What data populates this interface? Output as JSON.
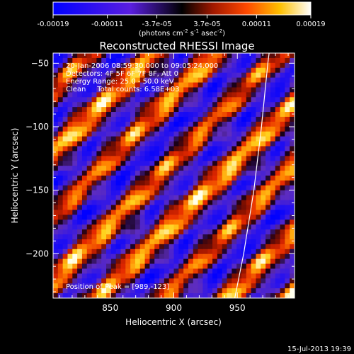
{
  "chart_data": {
    "type": "heatmap",
    "title": "Reconstructed RHESSI Image",
    "xlabel": "Heliocentric X (arcsec)",
    "ylabel": "Heliocentric Y (arcsec)",
    "xlim": [
      805,
      995
    ],
    "ylim": [
      -235,
      -42
    ],
    "x_ticks": [
      850,
      900,
      950
    ],
    "y_ticks": [
      -50,
      -100,
      -150,
      -200
    ],
    "colorbar": {
      "min": -0.00019,
      "max": 0.00019,
      "tick_values": [
        -0.00019,
        -0.00011,
        -3.7e-05,
        3.7e-05,
        0.00011,
        0.00019
      ],
      "tick_labels": [
        "-0.00019",
        "-0.00011",
        "-3.7e-05",
        "3.7e-05",
        "0.00011",
        "0.00019"
      ],
      "unit_label": "(photons cm",
      "unit_exp1": "-2",
      "unit_mid": " s",
      "unit_exp2": "-1",
      "unit_end": " asec",
      "unit_exp3": "-2",
      "unit_close": ")"
    },
    "annotations": {
      "line1": "20-Jan-2006 08:59:30.000 to 09:05:24.000",
      "line2": "Detectors: 4F 5F 6F 7F 8F, Att 0",
      "line3": "Energy Range: 25.0 - 50.0 keV",
      "line4": "Clean     Total counts: 6.58E+03",
      "peak": "Position of Peak = [989,-123]"
    },
    "peak_position": [
      989,
      -123
    ],
    "limb_curve": [
      [
        948,
        -235
      ],
      [
        955,
        -200
      ],
      [
        963,
        -150
      ],
      [
        969,
        -100
      ],
      [
        974,
        -50
      ],
      [
        975,
        -42
      ]
    ],
    "timestamp": "15-Jul-2013 19:39"
  }
}
